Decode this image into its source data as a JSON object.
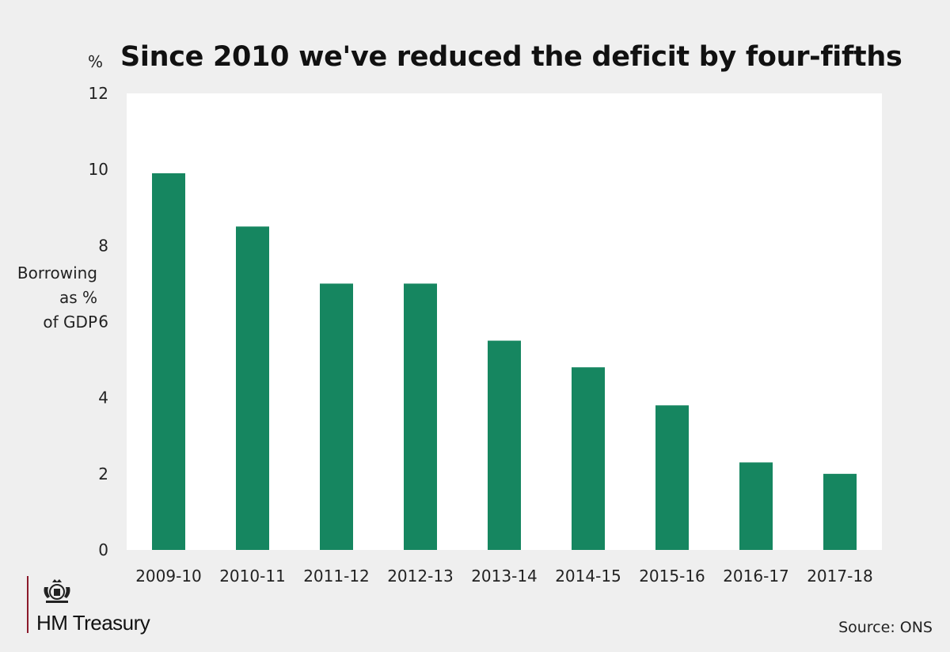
{
  "header": {
    "title": "Since 2010 we've reduced the deficit by four-fifths",
    "unit": "%"
  },
  "axis": {
    "ylabel": "Borrowing\nas %\nof GDP"
  },
  "colors": {
    "bar": "#168660",
    "plot_bg": "#ffffff",
    "page_bg": "#efefef",
    "logo_rule": "#8b1a2b"
  },
  "chart_data": {
    "type": "bar",
    "title": "Since 2010 we've reduced the deficit by four-fifths",
    "ylabel": "Borrowing as % of GDP",
    "yunit": "%",
    "categories": [
      "2009-10",
      "2010-11",
      "2011-12",
      "2012-13",
      "2013-14",
      "2014-15",
      "2015-16",
      "2016-17",
      "2017-18"
    ],
    "values": [
      9.9,
      8.5,
      7.0,
      7.0,
      5.5,
      4.8,
      3.8,
      2.3,
      2.0
    ],
    "ylim": [
      0,
      12
    ],
    "yticks": [
      0,
      2,
      4,
      6,
      8,
      10,
      12
    ],
    "grid": false
  },
  "logo": {
    "text": "HM Treasury",
    "icon": "royal-crest-icon"
  },
  "footer": {
    "source": "Source: ONS"
  }
}
